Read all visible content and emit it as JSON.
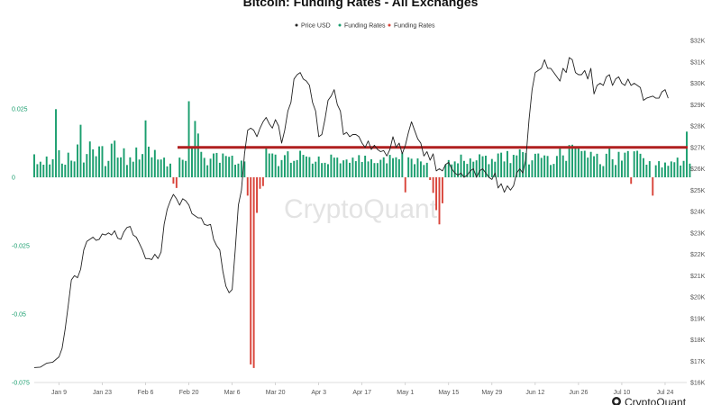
{
  "chart_data": {
    "type": "bar+line",
    "title": "Bitcoin: Funding Rates - All Exchanges",
    "legend": {
      "placement": "top-center",
      "items": [
        {
          "label": "Price USD",
          "color": "#222222"
        },
        {
          "label": "Funding Rates",
          "color": "#1a9e6e"
        },
        {
          "label": "Funding Rates",
          "color": "#d9443a"
        }
      ]
    },
    "left_axis": {
      "ticks": [
        {
          "label": "0.025",
          "value": 0.025
        },
        {
          "label": "0",
          "value": 0
        },
        {
          "label": "-0.025",
          "value": -0.025
        },
        {
          "label": "-0.05",
          "value": -0.05
        },
        {
          "label": "-0.075",
          "value": -0.075
        }
      ],
      "ylim": [
        -0.075,
        0.05
      ]
    },
    "right_axis": {
      "ticks": [
        "$16K",
        "$17K",
        "$18K",
        "$19K",
        "$20K",
        "$21K",
        "$22K",
        "$23K",
        "$24K",
        "$25K",
        "$26K",
        "$27K",
        "$28K",
        "$29K",
        "$30K",
        "$31K",
        "$32K"
      ],
      "ylim": [
        16000,
        32000
      ]
    },
    "x_axis": {
      "tick_labels": [
        "Jan 9",
        "Jan 23",
        "Feb 6",
        "Feb 20",
        "Mar 6",
        "Mar 20",
        "Apr 3",
        "Apr 17",
        "May 1",
        "May 15",
        "May 29",
        "Jun 12",
        "Jun 26",
        "Jul 10",
        "Jul 24"
      ],
      "tick_days": [
        8,
        22,
        36,
        50,
        64,
        78,
        92,
        106,
        120,
        134,
        148,
        162,
        176,
        190,
        204
      ],
      "day_range": [
        0,
        211
      ]
    },
    "funding_rates": [
      0.0084,
      0.0048,
      0.0057,
      0.0046,
      0.0076,
      0.0047,
      0.0066,
      0.0249,
      0.0099,
      0.005,
      0.0046,
      0.009,
      0.0061,
      0.0058,
      0.012,
      0.0192,
      0.0054,
      0.0085,
      0.0131,
      0.0102,
      0.0077,
      0.0113,
      0.0114,
      0.0041,
      0.006,
      0.0123,
      0.0134,
      0.0072,
      0.0073,
      0.0106,
      0.0045,
      0.0073,
      0.0057,
      0.0109,
      0.0065,
      0.0085,
      0.0208,
      0.0112,
      0.0073,
      0.01,
      0.0065,
      0.0065,
      0.0072,
      0.004,
      0.005,
      -0.0023,
      -0.0039,
      0.0072,
      0.0064,
      0.006,
      0.0278,
      0.0112,
      0.0206,
      0.016,
      0.0093,
      0.0071,
      0.0044,
      0.0068,
      0.0087,
      0.0089,
      0.0053,
      0.0087,
      0.0078,
      0.0075,
      0.0079,
      0.0046,
      0.005,
      0.0061,
      0.0058,
      -0.0067,
      -0.0684,
      -0.0697,
      -0.013,
      -0.0042,
      -0.0032,
      0.0112,
      0.0087,
      0.0087,
      0.0083,
      0.0041,
      0.0063,
      0.0081,
      0.0095,
      0.0053,
      0.006,
      0.0063,
      0.0097,
      0.0082,
      0.0076,
      0.0074,
      0.005,
      0.0057,
      0.0076,
      0.0052,
      0.0053,
      0.0048,
      0.0083,
      0.0072,
      0.0072,
      0.0051,
      0.0062,
      0.0065,
      0.0053,
      0.0072,
      0.0059,
      0.0081,
      0.0056,
      0.0079,
      0.0058,
      0.0066,
      0.0052,
      0.0052,
      0.0064,
      0.0073,
      0.0051,
      0.0082,
      0.007,
      0.0073,
      0.0066,
      0.0089,
      -0.0055,
      0.0073,
      0.0068,
      0.0048,
      0.0069,
      0.0058,
      0.0045,
      0.0053,
      -0.001,
      -0.0057,
      -0.012,
      -0.0172,
      -0.0095,
      0.0047,
      0.0063,
      0.0047,
      0.0058,
      0.0051,
      0.0083,
      0.006,
      0.0049,
      0.0069,
      0.0057,
      0.0062,
      0.0084,
      0.0077,
      0.0079,
      0.0048,
      0.0067,
      0.0057,
      0.0087,
      0.009,
      0.0058,
      0.0096,
      0.0052,
      0.0082,
      0.008,
      0.0102,
      0.0092,
      0.0089,
      0.0047,
      0.0062,
      0.0086,
      0.0087,
      0.0071,
      0.008,
      0.0078,
      0.0045,
      0.0049,
      0.0078,
      0.0106,
      0.008,
      0.006,
      0.0118,
      0.0119,
      0.011,
      0.0107,
      0.0096,
      0.0097,
      0.0072,
      0.0093,
      0.0077,
      0.0086,
      0.0048,
      0.0041,
      0.0086,
      0.0107,
      0.0066,
      0.0045,
      0.0093,
      0.0061,
      0.009,
      0.0096,
      -0.0024,
      0.0095,
      0.0097,
      0.0086,
      0.007,
      0.0046,
      0.0059,
      -0.0067,
      0.0044,
      0.0059,
      0.0036,
      0.0054,
      0.0042,
      0.0058,
      0.0055,
      0.0072,
      0.0043,
      0.006,
      0.0167,
      0.005
    ],
    "price_points": [
      [
        0,
        16700
      ],
      [
        2,
        16720
      ],
      [
        4,
        16900
      ],
      [
        6,
        16950
      ],
      [
        8,
        17200
      ],
      [
        9,
        17600
      ],
      [
        10,
        18500
      ],
      [
        11,
        19600
      ],
      [
        12,
        20800
      ],
      [
        13,
        21000
      ],
      [
        14,
        20900
      ],
      [
        15,
        21300
      ],
      [
        16,
        22200
      ],
      [
        17,
        22600
      ],
      [
        18,
        22700
      ],
      [
        19,
        22800
      ],
      [
        20,
        22650
      ],
      [
        21,
        22700
      ],
      [
        22,
        22950
      ],
      [
        23,
        22900
      ],
      [
        24,
        23000
      ],
      [
        25,
        22900
      ],
      [
        26,
        23100
      ],
      [
        27,
        22750
      ],
      [
        28,
        22700
      ],
      [
        29,
        23050
      ],
      [
        30,
        23250
      ],
      [
        31,
        23300
      ],
      [
        32,
        22900
      ],
      [
        33,
        22800
      ],
      [
        34,
        22500
      ],
      [
        35,
        22200
      ],
      [
        36,
        21800
      ],
      [
        37,
        21800
      ],
      [
        38,
        21750
      ],
      [
        39,
        22000
      ],
      [
        40,
        21800
      ],
      [
        41,
        22100
      ],
      [
        42,
        23400
      ],
      [
        43,
        24100
      ],
      [
        44,
        24500
      ],
      [
        45,
        24800
      ],
      [
        46,
        24600
      ],
      [
        47,
        24300
      ],
      [
        48,
        24600
      ],
      [
        49,
        24500
      ],
      [
        50,
        24300
      ],
      [
        51,
        23900
      ],
      [
        52,
        23800
      ],
      [
        53,
        23700
      ],
      [
        54,
        23700
      ],
      [
        55,
        23400
      ],
      [
        56,
        23350
      ],
      [
        57,
        23400
      ],
      [
        58,
        22700
      ],
      [
        59,
        22400
      ],
      [
        60,
        22200
      ],
      [
        61,
        21200
      ],
      [
        62,
        20500
      ],
      [
        63,
        20200
      ],
      [
        64,
        20350
      ],
      [
        65,
        22200
      ],
      [
        66,
        24300
      ],
      [
        67,
        25000
      ],
      [
        68,
        26700
      ],
      [
        69,
        27800
      ],
      [
        70,
        27900
      ],
      [
        71,
        27800
      ],
      [
        72,
        27500
      ],
      [
        73,
        27900
      ],
      [
        74,
        28200
      ],
      [
        75,
        28400
      ],
      [
        76,
        28100
      ],
      [
        77,
        27900
      ],
      [
        78,
        28300
      ],
      [
        79,
        28000
      ],
      [
        80,
        27200
      ],
      [
        81,
        27800
      ],
      [
        82,
        28700
      ],
      [
        83,
        29100
      ],
      [
        84,
        30200
      ],
      [
        85,
        30400
      ],
      [
        86,
        30500
      ],
      [
        87,
        30200
      ],
      [
        88,
        30100
      ],
      [
        89,
        29900
      ],
      [
        90,
        29100
      ],
      [
        91,
        28700
      ],
      [
        92,
        27500
      ],
      [
        93,
        27600
      ],
      [
        94,
        28300
      ],
      [
        95,
        29200
      ],
      [
        96,
        29400
      ],
      [
        97,
        29700
      ],
      [
        98,
        29000
      ],
      [
        99,
        28700
      ],
      [
        100,
        27600
      ],
      [
        101,
        27700
      ],
      [
        102,
        27500
      ],
      [
        103,
        27600
      ],
      [
        104,
        27600
      ],
      [
        105,
        27500
      ],
      [
        106,
        27200
      ],
      [
        107,
        27000
      ],
      [
        108,
        27300
      ],
      [
        109,
        26900
      ],
      [
        110,
        27100
      ],
      [
        111,
        26900
      ],
      [
        112,
        26800
      ],
      [
        113,
        26850
      ],
      [
        114,
        26600
      ],
      [
        115,
        26900
      ],
      [
        116,
        27500
      ],
      [
        117,
        27000
      ],
      [
        118,
        27200
      ],
      [
        119,
        26700
      ],
      [
        120,
        27100
      ],
      [
        121,
        27700
      ],
      [
        122,
        28200
      ],
      [
        123,
        27800
      ],
      [
        124,
        27400
      ],
      [
        125,
        27200
      ],
      [
        126,
        26600
      ],
      [
        127,
        26800
      ],
      [
        128,
        26400
      ],
      [
        129,
        26700
      ],
      [
        130,
        25900
      ],
      [
        131,
        26000
      ],
      [
        132,
        25900
      ],
      [
        133,
        26200
      ],
      [
        134,
        26300
      ],
      [
        135,
        26000
      ],
      [
        136,
        25800
      ],
      [
        137,
        25700
      ],
      [
        138,
        25800
      ],
      [
        139,
        25600
      ],
      [
        140,
        25700
      ],
      [
        141,
        25900
      ],
      [
        142,
        26000
      ],
      [
        143,
        25600
      ],
      [
        144,
        25900
      ],
      [
        145,
        26000
      ],
      [
        146,
        25800
      ],
      [
        147,
        25600
      ],
      [
        148,
        25500
      ],
      [
        149,
        25800
      ],
      [
        150,
        25100
      ],
      [
        151,
        25300
      ],
      [
        152,
        24900
      ],
      [
        153,
        25200
      ],
      [
        154,
        25000
      ],
      [
        155,
        25200
      ],
      [
        156,
        25800
      ],
      [
        157,
        26000
      ],
      [
        158,
        25800
      ],
      [
        159,
        26500
      ],
      [
        160,
        28300
      ],
      [
        161,
        29700
      ],
      [
        162,
        30500
      ],
      [
        163,
        30600
      ],
      [
        164,
        30700
      ],
      [
        165,
        31100
      ],
      [
        166,
        30700
      ],
      [
        167,
        30700
      ],
      [
        168,
        30500
      ],
      [
        169,
        30300
      ],
      [
        170,
        30100
      ],
      [
        171,
        30700
      ],
      [
        172,
        30500
      ],
      [
        173,
        31200
      ],
      [
        174,
        31100
      ],
      [
        175,
        30500
      ],
      [
        176,
        30400
      ],
      [
        177,
        30400
      ],
      [
        178,
        30600
      ],
      [
        179,
        30200
      ],
      [
        180,
        30700
      ],
      [
        181,
        29500
      ],
      [
        182,
        29900
      ],
      [
        183,
        30000
      ],
      [
        184,
        29900
      ],
      [
        185,
        30300
      ],
      [
        186,
        30400
      ],
      [
        187,
        29900
      ],
      [
        188,
        30200
      ],
      [
        189,
        30300
      ],
      [
        190,
        30000
      ],
      [
        191,
        29900
      ],
      [
        192,
        30200
      ],
      [
        193,
        29900
      ],
      [
        194,
        30000
      ],
      [
        195,
        29900
      ],
      [
        196,
        29800
      ],
      [
        197,
        29200
      ],
      [
        198,
        29300
      ],
      [
        199,
        29350
      ],
      [
        200,
        29400
      ],
      [
        201,
        29300
      ],
      [
        202,
        29300
      ],
      [
        203,
        29600
      ],
      [
        204,
        29700
      ],
      [
        205,
        29300
      ]
    ],
    "reference_line": {
      "value": 27000,
      "color": "#b02020"
    }
  },
  "watermark": "CryptoQuant",
  "brand": "CryptoQuant"
}
